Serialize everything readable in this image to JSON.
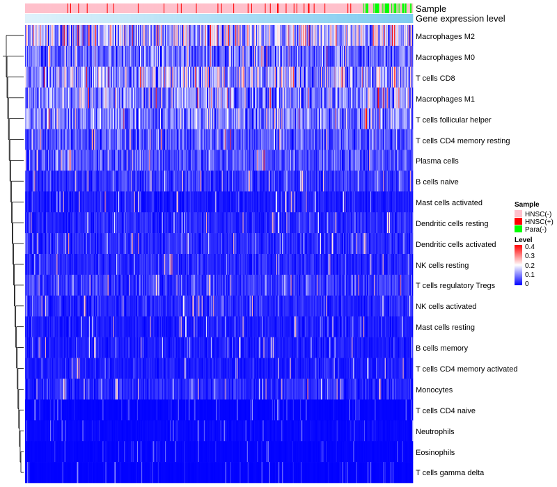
{
  "chart_data": {
    "type": "heatmap",
    "title": "",
    "n_columns": 540,
    "annotations": [
      {
        "name": "Sample",
        "kind": "categorical"
      },
      {
        "name": "Gene expression level",
        "kind": "continuous",
        "description": "sorted low to high"
      }
    ],
    "sample_groups": [
      {
        "label": "HNSC(-)",
        "color": "#ffc0cb",
        "share": 0.86
      },
      {
        "label": "HNSC(+)",
        "color": "#ff0000",
        "share": 0.08
      },
      {
        "label": "Para(-)",
        "color": "#00ff00",
        "share": 0.06
      }
    ],
    "rows": [
      {
        "label": "Macrophages M2",
        "mean": 0.14
      },
      {
        "label": "Macrophages M0",
        "mean": 0.08
      },
      {
        "label": "T cells CD8",
        "mean": 0.12
      },
      {
        "label": "Macrophages M1",
        "mean": 0.1
      },
      {
        "label": "T cells follicular helper",
        "mean": 0.1
      },
      {
        "label": "T cells CD4 memory resting",
        "mean": 0.06
      },
      {
        "label": "Plasma cells",
        "mean": 0.06
      },
      {
        "label": "B cells naive",
        "mean": 0.04
      },
      {
        "label": "Mast cells activated",
        "mean": 0.02
      },
      {
        "label": "Dendritic cells resting",
        "mean": 0.03
      },
      {
        "label": "Dendritic cells activated",
        "mean": 0.03
      },
      {
        "label": "NK cells resting",
        "mean": 0.03
      },
      {
        "label": "T cells regulatory  Tregs",
        "mean": 0.04
      },
      {
        "label": "NK cells activated",
        "mean": 0.03
      },
      {
        "label": "Mast cells resting",
        "mean": 0.02
      },
      {
        "label": "B cells memory",
        "mean": 0.02
      },
      {
        "label": "T cells CD4 memory activated",
        "mean": 0.02
      },
      {
        "label": "Monocytes",
        "mean": 0.03
      },
      {
        "label": "T cells CD4 naive",
        "mean": 0.005
      },
      {
        "label": "Neutrophils",
        "mean": 0.01
      },
      {
        "label": "Eosinophils",
        "mean": 0.005
      },
      {
        "label": "T cells gamma delta",
        "mean": 0.003
      }
    ],
    "legend_sample": {
      "title": "Sample",
      "items": [
        "HNSC(-)",
        "HNSC(+)",
        "Para(-)"
      ]
    },
    "legend_level": {
      "title": "Level",
      "ticks": [
        "0.4",
        "0.3",
        "0.2",
        "0.1",
        "0"
      ],
      "range": [
        0,
        0.4
      ]
    },
    "colors": {
      "low": "#0000ff",
      "mid": "#ffffff",
      "high": "#ff0000",
      "expr_light": "#dff2fb",
      "expr_dark": "#7ecbf0"
    },
    "dendrogram": {
      "side": "left",
      "orientation": "rows"
    }
  }
}
